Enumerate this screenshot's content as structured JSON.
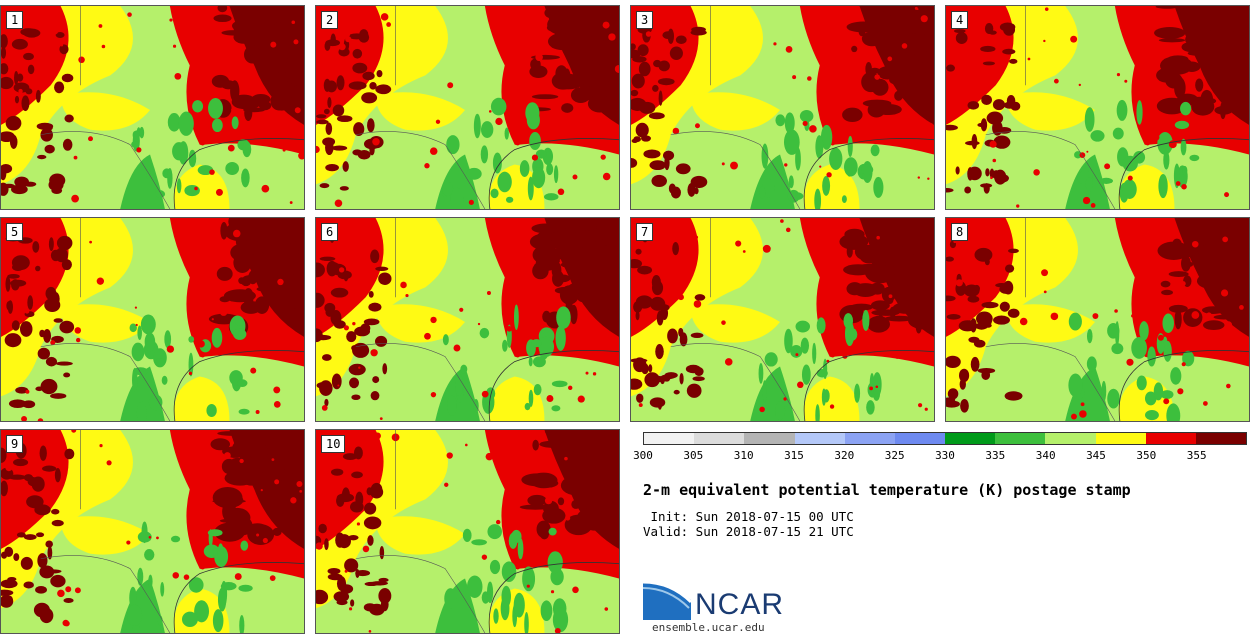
{
  "panels": [
    "1",
    "2",
    "3",
    "4",
    "5",
    "6",
    "7",
    "8",
    "9",
    "10"
  ],
  "colorbar": {
    "colors": [
      "#f2f2f2",
      "#dcdcdc",
      "#b4b4b4",
      "#b4c8f8",
      "#8ca3f3",
      "#6e8af0",
      "#009a1a",
      "#3dbf3d",
      "#b5f06b",
      "#fffa14",
      "#e80000",
      "#7a0000"
    ],
    "ticks": [
      "300",
      "305",
      "310",
      "315",
      "320",
      "325",
      "330",
      "335",
      "340",
      "345",
      "350",
      "355"
    ]
  },
  "title": "2-m equivalent potential temperature (K) postage stamp",
  "init": " Init: Sun 2018-07-15 00 UTC",
  "valid": "Valid: Sun 2018-07-15 21 UTC",
  "logo": {
    "text": "NCAR",
    "url": "ensemble.ucar.edu",
    "color": "#1a3b72"
  }
}
